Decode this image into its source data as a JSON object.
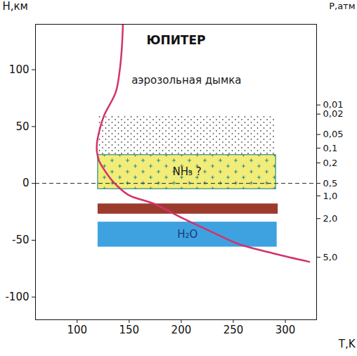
{
  "chart_data": {
    "type": "line",
    "title": "ЮПИТЕР",
    "x_label": "T,K",
    "y_label": "H,км",
    "xlim": [
      60,
      330
    ],
    "xticks": [
      100,
      150,
      200,
      250,
      300
    ],
    "ylim": [
      -120,
      140
    ],
    "yticks": [
      -100,
      -50,
      0,
      50,
      100
    ],
    "grid": false,
    "series": [
      {
        "color": "#d2336b",
        "x": [
          144,
          143,
          141,
          137,
          126,
          121,
          119,
          119,
          121,
          126,
          134,
          149,
          174,
          202,
          230,
          254,
          290,
          323
        ],
        "values": [
          140,
          120,
          100,
          80,
          60,
          45,
          35,
          28,
          20,
          12,
          2,
          -10,
          -18,
          -31,
          -43,
          -53,
          -62,
          -69
        ]
      }
    ],
    "layers": [
      {
        "label": "аэрозольная дымка",
        "t": [
          120,
          290
        ],
        "h": [
          25,
          60
        ],
        "color": "#ffffff",
        "marker": "dots"
      },
      {
        "label": "NH₃ ?",
        "t": [
          120,
          291
        ],
        "h": [
          -5,
          25
        ],
        "color": "#f2ec78",
        "marker": "plus"
      },
      {
        "t": [
          120,
          293
        ],
        "h": [
          -27,
          -18
        ],
        "color": "#9b3b2c"
      },
      {
        "label": "H₂O",
        "t": [
          120,
          292
        ],
        "h": [
          -56,
          -34
        ],
        "color": "#3fa2e0"
      }
    ],
    "level_line": {
      "h": 0,
      "line_style": "dashed"
    },
    "pressure": {
      "label": "P,атм",
      "ticks": [
        {
          "h": 69,
          "label": "0,01"
        },
        {
          "h": 61,
          "label": "0,02"
        },
        {
          "h": 43,
          "label": "0,05"
        },
        {
          "h": 31,
          "label": "0,1"
        },
        {
          "h": 18,
          "label": "0,2"
        },
        {
          "h": 0,
          "label": "0,5"
        },
        {
          "h": -11,
          "label": "1,0"
        },
        {
          "h": -31,
          "label": "2,0"
        },
        {
          "h": -65,
          "label": "5,0"
        }
      ]
    }
  }
}
